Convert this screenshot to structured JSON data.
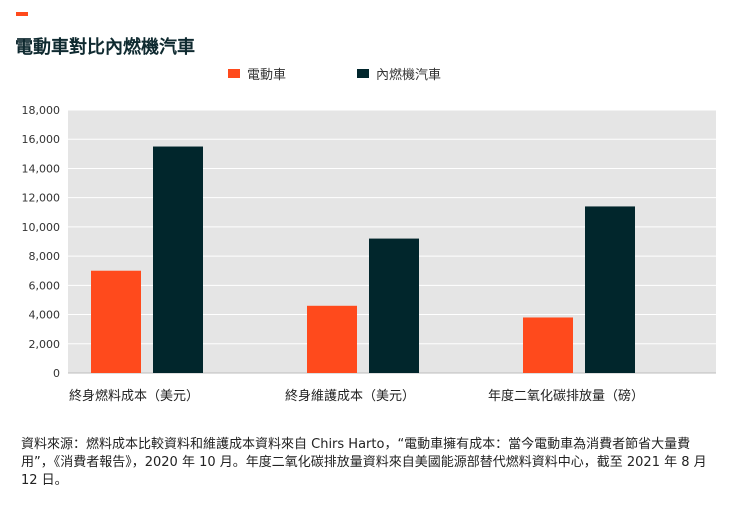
{
  "title": "電動車對比內燃機汽車",
  "colors": {
    "accent": "#ff4a1c",
    "ev": "#ff4a1c",
    "ice": "#01262c",
    "plot_bg": "#e5e5e5",
    "grid": "#ffffff"
  },
  "chart_data": {
    "type": "bar",
    "categories": [
      "終身燃料成本（美元）",
      "終身維護成本（美元）",
      "年度二氧化碳排放量（磅）"
    ],
    "series": [
      {
        "name": "電動車",
        "values": [
          7000,
          4600,
          3800
        ]
      },
      {
        "name": "內燃機汽車",
        "values": [
          15500,
          9200,
          11400
        ]
      }
    ],
    "ylim": [
      0,
      18000
    ],
    "yticks": [
      "0",
      "2,000",
      "4,000",
      "6,000",
      "8,000",
      "10,000",
      "12,000",
      "14,000",
      "16,000",
      "18,000"
    ],
    "ytick_values": [
      0,
      2000,
      4000,
      6000,
      8000,
      10000,
      12000,
      14000,
      16000,
      18000
    ],
    "grid": true,
    "legend": "top-center"
  },
  "footnote": "資料來源：燃料成本比較資料和維護成本資料來自 Chirs Harto，“電動車擁有成本：當今電動車為消費者節省大量費用”，《消費者報告》，2020 年 10 月。年度二氧化碳排放量資料來自美國能源部替代燃料資料中心，截至 2021 年 8 月 12 日。"
}
